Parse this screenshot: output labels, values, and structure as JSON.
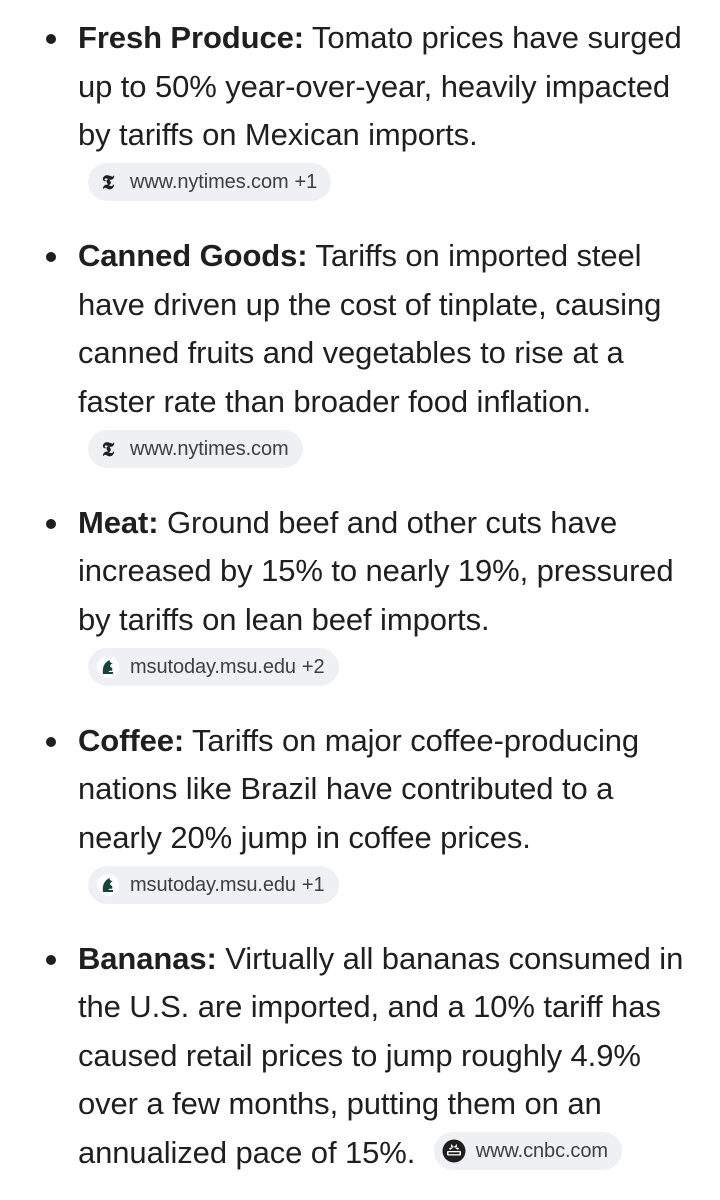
{
  "items": [
    {
      "title": "Fresh Produce:",
      "text": " Tomato prices have surged up to 50% year-over-year, heavily impacted by tariffs on Mexican imports.",
      "chip": {
        "source": "www.nytimes.com",
        "count": "+1",
        "icon": "nytimes-logo-icon"
      }
    },
    {
      "title": "Canned Goods:",
      "text": " Tariffs on imported steel have driven up the cost of tinplate, causing canned fruits and vegetables to rise at a faster rate than broader food inflation.",
      "chip": {
        "source": "www.nytimes.com",
        "count": "",
        "icon": "nytimes-logo-icon"
      }
    },
    {
      "title": "Meat:",
      "text": " Ground beef and other cuts have increased by 15% to nearly 19%, pressured by tariffs on lean beef imports.",
      "chip": {
        "source": "msutoday.msu.edu",
        "count": "+2",
        "icon": "msu-spartan-logo-icon"
      }
    },
    {
      "title": "Coffee:",
      "text": " Tariffs on major coffee-producing nations like Brazil have contributed to a nearly 20% jump in coffee prices.",
      "chip": {
        "source": "msutoday.msu.edu",
        "count": "+1",
        "icon": "msu-spartan-logo-icon"
      }
    },
    {
      "title": "Bananas:",
      "text": " Virtually all bananas consumed in the U.S. are imported, and a 10% tariff has caused retail prices to jump roughly 4.9% over a few months, putting them on an annualized pace of 15%.",
      "chip": {
        "source": "www.cnbc.com",
        "count": "",
        "icon": "cnbc-logo-icon"
      }
    }
  ],
  "colors": {
    "text": "#1f1f1f",
    "chip_bg": "#eef0f4",
    "chip_text": "#3c4043",
    "msu_green": "#18453b",
    "cnbc_bg": "#1f1f1f"
  }
}
